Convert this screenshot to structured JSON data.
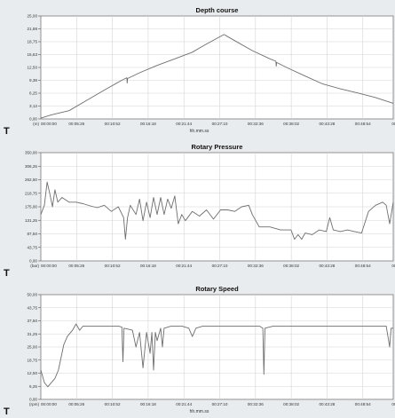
{
  "chart_data": [
    {
      "type": "line",
      "title": "Depth course",
      "xlabel": "hh.mm.ss",
      "unit": "(m)",
      "marker": "T",
      "grid": true,
      "ylim": [
        0,
        25
      ],
      "yticks": [
        "25,00",
        "21,88",
        "18,75",
        "15,63",
        "12,50",
        "9,38",
        "6,25",
        "3,13",
        "0,00"
      ],
      "xticks": [
        "00:00:00",
        "00:05:26",
        "00:10:52",
        "00:16:18",
        "00:21:44",
        "00:27:10",
        "00:32:36",
        "00:38:02",
        "00:43:28",
        "00:48:54",
        "00:54:2"
      ],
      "series": [
        {
          "color": "#6e6e6e",
          "points": [
            [
              0,
              0.2
            ],
            [
              3,
              1.0
            ],
            [
              8,
              2.0
            ],
            [
              13,
              4.5
            ],
            [
              18,
              7.0
            ],
            [
              23,
              9.4
            ],
            [
              24.4,
              10.0
            ],
            [
              24.5,
              8.7
            ],
            [
              24.6,
              9.8
            ],
            [
              28,
              11.2
            ],
            [
              33,
              13.0
            ],
            [
              38,
              14.6
            ],
            [
              43,
              16.2
            ],
            [
              46,
              17.7
            ],
            [
              50,
              19.6
            ],
            [
              52,
              20.5
            ],
            [
              55,
              19.0
            ],
            [
              60,
              16.6
            ],
            [
              65,
              14.6
            ],
            [
              66.7,
              14.0
            ],
            [
              66.8,
              12.8
            ],
            [
              66.9,
              13.7
            ],
            [
              70,
              12.4
            ],
            [
              75,
              10.4
            ],
            [
              80,
              8.5
            ],
            [
              85,
              7.3
            ],
            [
              90,
              6.3
            ],
            [
              95,
              5.2
            ],
            [
              100,
              3.8
            ]
          ]
        }
      ]
    },
    {
      "type": "line",
      "title": "Rotary Pressure",
      "xlabel": "",
      "unit": "(bar)",
      "marker": "T",
      "grid": true,
      "ylim": [
        0,
        350
      ],
      "yticks": [
        "350,00",
        "306,25",
        "262,50",
        "218,75",
        "175,00",
        "131,25",
        "87,50",
        "43,75",
        "0,00"
      ],
      "xticks": [
        "00:00:00",
        "00:05:26",
        "00:10:52",
        "00:16:18",
        "00:21:44",
        "00:27:10",
        "00:32:36",
        "00:38:02",
        "00:43:28",
        "00:48:54",
        "00:54:2"
      ],
      "series": [
        {
          "color": "#6e6e6e",
          "points": [
            [
              0,
              150
            ],
            [
              1,
              180
            ],
            [
              1.8,
              255
            ],
            [
              2.5,
              220
            ],
            [
              3.3,
              175
            ],
            [
              4,
              230
            ],
            [
              4.8,
              190
            ],
            [
              6,
              205
            ],
            [
              8,
              190
            ],
            [
              10,
              190
            ],
            [
              12,
              185
            ],
            [
              14,
              178
            ],
            [
              16,
              172
            ],
            [
              18,
              180
            ],
            [
              20,
              160
            ],
            [
              22,
              175
            ],
            [
              23.5,
              140
            ],
            [
              24,
              70
            ],
            [
              24.6,
              140
            ],
            [
              25.4,
              180
            ],
            [
              27,
              150
            ],
            [
              28,
              200
            ],
            [
              29,
              130
            ],
            [
              30,
              190
            ],
            [
              31,
              140
            ],
            [
              32,
              205
            ],
            [
              33,
              150
            ],
            [
              34,
              205
            ],
            [
              35,
              150
            ],
            [
              36,
              200
            ],
            [
              37,
              170
            ],
            [
              38,
              210
            ],
            [
              39,
              120
            ],
            [
              40,
              150
            ],
            [
              41,
              130
            ],
            [
              43,
              160
            ],
            [
              45,
              145
            ],
            [
              47,
              165
            ],
            [
              49,
              135
            ],
            [
              51,
              165
            ],
            [
              53,
              165
            ],
            [
              55,
              160
            ],
            [
              57,
              175
            ],
            [
              59,
              180
            ],
            [
              60,
              150
            ],
            [
              62,
              110
            ],
            [
              65,
              110
            ],
            [
              68,
              100
            ],
            [
              71,
              100
            ],
            [
              72,
              70
            ],
            [
              73,
              85
            ],
            [
              74,
              70
            ],
            [
              75,
              90
            ],
            [
              77,
              85
            ],
            [
              79,
              100
            ],
            [
              81,
              95
            ],
            [
              82,
              140
            ],
            [
              83,
              100
            ],
            [
              85,
              95
            ],
            [
              87,
              100
            ],
            [
              89,
              95
            ],
            [
              91,
              90
            ],
            [
              93,
              160
            ],
            [
              95,
              180
            ],
            [
              97,
              190
            ],
            [
              98,
              180
            ],
            [
              99,
              120
            ],
            [
              100,
              190
            ]
          ]
        }
      ]
    },
    {
      "type": "line",
      "title": "Rotary Speed",
      "xlabel": "hh.mm.ss",
      "unit": "(rpm)",
      "marker": "T",
      "grid": true,
      "ylim": [
        0,
        50
      ],
      "yticks": [
        "50,00",
        "43,75",
        "37,50",
        "31,25",
        "25,00",
        "18,75",
        "12,50",
        "6,25",
        "0,00"
      ],
      "xticks": [
        "00:00:00",
        "00:05:26",
        "00:10:52",
        "00:16:18",
        "00:21:44",
        "00:27:10",
        "00:32:36",
        "00:38:02",
        "00:43:28",
        "00:48:54",
        "00:54:2"
      ],
      "series": [
        {
          "color": "#6e6e6e",
          "points": [
            [
              0,
              14
            ],
            [
              1,
              8
            ],
            [
              2,
              6
            ],
            [
              3,
              8
            ],
            [
              4,
              10
            ],
            [
              5,
              14
            ],
            [
              6.5,
              26
            ],
            [
              7.5,
              30
            ],
            [
              9,
              33
            ],
            [
              10,
              36
            ],
            [
              11,
              33
            ],
            [
              12,
              35
            ],
            [
              14,
              35
            ],
            [
              16,
              35
            ],
            [
              18,
              35
            ],
            [
              20,
              35
            ],
            [
              22,
              35
            ],
            [
              23,
              34.5
            ],
            [
              23.3,
              18
            ],
            [
              23.6,
              34
            ],
            [
              26,
              33
            ],
            [
              27,
              25
            ],
            [
              28,
              32
            ],
            [
              29,
              15
            ],
            [
              30,
              32
            ],
            [
              31,
              22
            ],
            [
              31.5,
              32
            ],
            [
              32,
              14
            ],
            [
              32.5,
              32
            ],
            [
              33,
              28
            ],
            [
              34,
              34
            ],
            [
              34.5,
              25
            ],
            [
              35,
              34
            ],
            [
              37,
              35
            ],
            [
              40,
              35
            ],
            [
              42,
              34
            ],
            [
              43,
              30
            ],
            [
              44,
              34
            ],
            [
              46,
              35
            ],
            [
              50,
              35
            ],
            [
              55,
              35
            ],
            [
              60,
              35
            ],
            [
              62,
              35
            ],
            [
              63,
              34
            ],
            [
              63.3,
              12
            ],
            [
              63.6,
              34
            ],
            [
              66,
              35
            ],
            [
              70,
              35
            ],
            [
              75,
              35
            ],
            [
              80,
              35
            ],
            [
              85,
              35
            ],
            [
              90,
              35
            ],
            [
              95,
              35
            ],
            [
              98,
              35
            ],
            [
              99,
              25
            ],
            [
              99.4,
              34
            ],
            [
              100,
              34
            ]
          ]
        }
      ]
    }
  ]
}
